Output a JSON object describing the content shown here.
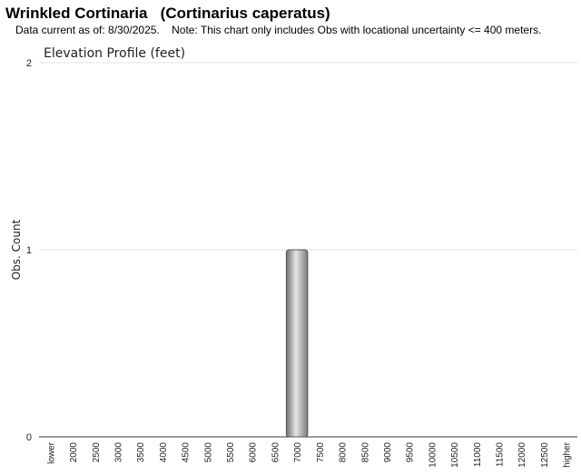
{
  "header": {
    "title": "Wrinkled Cortinaria   (Cortinarius caperatus)",
    "subtitle": "Data current as of: 8/30/2025.    Note: This chart only includes Obs with locational uncertainty <= 400 meters."
  },
  "chart_data": {
    "type": "bar",
    "title": "Elevation Profile (feet)",
    "xlabel": "",
    "ylabel": "Obs. Count",
    "ylim": [
      0,
      2
    ],
    "yticks": [
      "0",
      "1",
      "2"
    ],
    "grid": true,
    "categories": [
      "lower",
      "2000",
      "2500",
      "3000",
      "3500",
      "4000",
      "4500",
      "5000",
      "5500",
      "6000",
      "6500",
      "7000",
      "7500",
      "8000",
      "8500",
      "9000",
      "9500",
      "10000",
      "10500",
      "11000",
      "11500",
      "12000",
      "12500",
      "higher"
    ],
    "values": [
      0,
      0,
      0,
      0,
      0,
      0,
      0,
      0,
      0,
      0,
      0,
      1,
      0,
      0,
      0,
      0,
      0,
      0,
      0,
      0,
      0,
      0,
      0,
      0
    ],
    "colors": {
      "bar_light": "#e6e6e6",
      "bar_dark": "#6f6f6f",
      "gridline": "#e3e3e3",
      "axis": "#333333"
    }
  }
}
